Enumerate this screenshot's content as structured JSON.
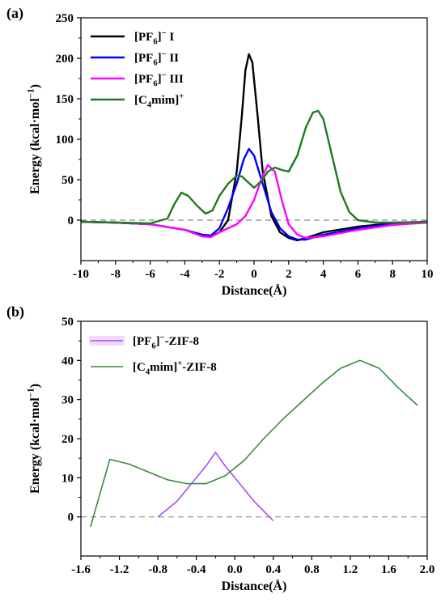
{
  "chart_data": [
    {
      "type": "line",
      "panel_label": "(a)",
      "xlabel": "Distance(Å)",
      "ylabel": "Energy (kcal·mol⁻¹)",
      "xlim": [
        -10,
        10
      ],
      "ylim": [
        -50,
        250
      ],
      "xticks": [
        -10,
        -8,
        -6,
        -4,
        -2,
        0,
        2,
        4,
        6,
        8,
        10
      ],
      "yticks": [
        0,
        50,
        100,
        150,
        200,
        250
      ],
      "reference_line": {
        "y": 0,
        "style": "dashed",
        "color": "#888888"
      },
      "legend_position": "top-left",
      "series": [
        {
          "name": "[PF₆]⁻ I",
          "color": "#000000",
          "x": [
            -10,
            -8,
            -6,
            -4,
            -3,
            -2.5,
            -2,
            -1.5,
            -1,
            -0.7,
            -0.5,
            -0.3,
            -0.1,
            0.2,
            0.5,
            1,
            1.5,
            2,
            2.5,
            3,
            4,
            6,
            8,
            10
          ],
          "y": [
            -2,
            -3,
            -5,
            -12,
            -18,
            -20,
            -15,
            0,
            60,
            130,
            185,
            205,
            195,
            130,
            60,
            5,
            -15,
            -22,
            -25,
            -22,
            -15,
            -8,
            -4,
            -2
          ]
        },
        {
          "name": "[PF₆]⁻ II",
          "color": "#0000ff",
          "x": [
            -10,
            -8,
            -6,
            -4,
            -3,
            -2.5,
            -2,
            -1.5,
            -1,
            -0.6,
            -0.3,
            0,
            0.5,
            1,
            1.5,
            2,
            2.5,
            3,
            4,
            6,
            8,
            10
          ],
          "y": [
            -2,
            -3,
            -5,
            -12,
            -18,
            -19,
            -10,
            15,
            45,
            75,
            88,
            80,
            45,
            10,
            -10,
            -20,
            -24,
            -24,
            -18,
            -10,
            -5,
            -3
          ]
        },
        {
          "name": "[PF₆]⁻ III",
          "color": "#ff00ff",
          "x": [
            -10,
            -8,
            -6,
            -4,
            -3,
            -2.5,
            -2,
            -1,
            -0.5,
            0,
            0.5,
            0.8,
            1.2,
            1.6,
            2,
            2.5,
            3,
            4,
            6,
            8,
            10
          ],
          "y": [
            -2,
            -3,
            -5,
            -12,
            -20,
            -21,
            -15,
            -5,
            5,
            25,
            55,
            68,
            60,
            25,
            -5,
            -18,
            -22,
            -20,
            -12,
            -6,
            -3
          ]
        },
        {
          "name": "[C₄mim]⁺",
          "color": "#1f7a1f",
          "x": [
            -10,
            -8,
            -6,
            -5,
            -4.6,
            -4.2,
            -3.8,
            -3.3,
            -2.8,
            -2.4,
            -2,
            -1.5,
            -1,
            -0.7,
            -0.4,
            0,
            0.4,
            0.8,
            1.2,
            1.6,
            2,
            2.5,
            3,
            3.4,
            3.7,
            4,
            4.5,
            5,
            5.5,
            6,
            7,
            8,
            10
          ],
          "y": [
            -2,
            -3,
            -4,
            2,
            20,
            34,
            30,
            18,
            8,
            12,
            30,
            45,
            55,
            54,
            48,
            40,
            48,
            60,
            65,
            62,
            60,
            80,
            115,
            133,
            135,
            125,
            80,
            35,
            10,
            0,
            -3,
            -3,
            -2
          ]
        }
      ]
    },
    {
      "type": "line",
      "panel_label": "(b)",
      "xlabel": "Distance(Å)",
      "ylabel": "Energy (kcal·mol⁻¹)",
      "xlim": [
        -1.6,
        2.0
      ],
      "ylim": [
        -10,
        50
      ],
      "xticks": [
        "-1.6",
        "-1.2",
        "-0.8",
        "-0.4",
        "0.0",
        "0.4",
        "0.8",
        "1.2",
        "1.6",
        "2.0"
      ],
      "yticks": [
        0,
        10,
        20,
        30,
        40,
        50
      ],
      "reference_line": {
        "y": 0,
        "style": "dashed",
        "color": "#888888"
      },
      "legend_position": "top-left",
      "series": [
        {
          "name": "[PF₆]⁻-ZIF-8",
          "color": "#a64dff",
          "x": [
            -0.8,
            -0.6,
            -0.4,
            -0.3,
            -0.2,
            -0.1,
            0.0,
            0.1,
            0.2,
            0.3,
            0.4
          ],
          "y": [
            0,
            4,
            10,
            13,
            16.5,
            13,
            10,
            7,
            4,
            1.5,
            -1
          ]
        },
        {
          "name": "[C₄mim]⁺-ZIF-8",
          "color": "#3a8a3a",
          "x": [
            -1.5,
            -1.3,
            -1.1,
            -0.9,
            -0.7,
            -0.5,
            -0.3,
            -0.1,
            0.1,
            0.3,
            0.5,
            0.7,
            0.9,
            1.1,
            1.3,
            1.5,
            1.7,
            1.9
          ],
          "y": [
            -2.5,
            14.7,
            13.5,
            11.5,
            9.5,
            8.5,
            8.5,
            10.5,
            14.5,
            20,
            25,
            29.5,
            34,
            38,
            40,
            38,
            33,
            28.5
          ]
        }
      ]
    }
  ]
}
